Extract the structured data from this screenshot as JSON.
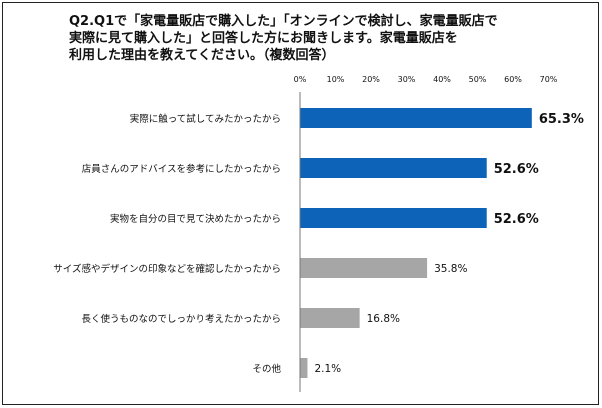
{
  "title_lines": [
    "Q2.Q1で「家電量販店で購入した」「オンラインで検討し、家電量販店で",
    "実際に見て購入した」と回答した方にお聞きします。家電量販店を",
    "利用した理由を教えてください。（複数回答）"
  ],
  "chart_data": {
    "type": "bar",
    "orientation": "horizontal",
    "title": "Q2.Q1で「家電量販店で購入した」「オンラインで検討し、家電量販店で実際に見て購入した」と回答した方にお聞きします。家電量販店を利用した理由を教えてください。（複数回答）",
    "xlim": [
      0,
      70
    ],
    "ticks": [
      "0%",
      "10%",
      "20%",
      "30%",
      "40%",
      "50%",
      "60%",
      "70%"
    ],
    "grid": false,
    "tick_position": "top",
    "categories": [
      "実際に触って試してみたかったから",
      "店員さんのアドバイスを参考にしたかったから",
      "実物を自分の目で見て決めたかったから",
      "サイズ感やデザインの印象などを確認したかったから",
      "長く使うものなのでしっかり考えたかったから",
      "その他"
    ],
    "values": [
      65.3,
      52.6,
      52.6,
      35.8,
      16.8,
      2.1
    ],
    "value_labels": [
      "65.3%",
      "52.6%",
      "52.6%",
      "35.8%",
      "16.8%",
      "2.1%"
    ],
    "highlighted": [
      true,
      true,
      true,
      false,
      false,
      false
    ],
    "colors": {
      "highlight": "#0D63B8",
      "normal": "#A6A6A6",
      "axis": "#777777",
      "text": "#111111"
    }
  }
}
